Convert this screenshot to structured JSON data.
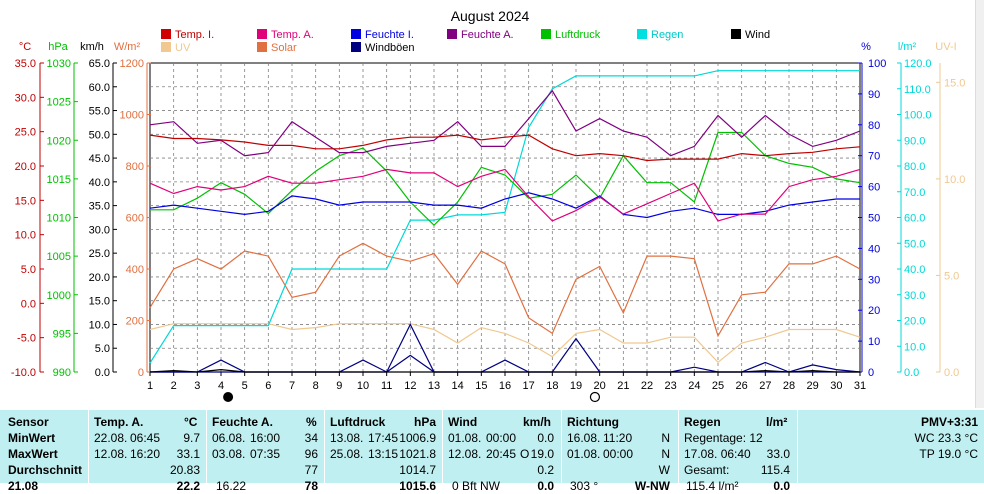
{
  "title": "August 2024",
  "colors": {
    "temp_in": "#c00000",
    "temp_out": "#e0007a",
    "hum_in": "#0000e0",
    "hum_out": "#800080",
    "pressure": "#00c000",
    "rain": "#00d8d8",
    "wind": "#000000",
    "gust": "#000080",
    "uv": "#f0c890",
    "solar": "#e07040",
    "grid": "#808080"
  },
  "legend": [
    {
      "label": "Temp. I.",
      "color": "#d00000",
      "text_color": "#c00000"
    },
    {
      "label": "Temp. A.",
      "color": "#e0007a",
      "text_color": "#e0007a"
    },
    {
      "label": "Feuchte I.",
      "color": "#0000e0",
      "text_color": "#0000e0"
    },
    {
      "label": "Feuchte A.",
      "color": "#800080",
      "text_color": "#800080"
    },
    {
      "label": "Luftdruck",
      "color": "#00c000",
      "text_color": "#00c000"
    },
    {
      "label": "Regen",
      "color": "#00e0e0",
      "text_color": "#00c8c8"
    },
    {
      "label": "Wind",
      "color": "#000000",
      "text_color": "#000000"
    },
    {
      "label": "UV",
      "color": "#f0c890",
      "text_color": "#f0c890"
    },
    {
      "label": "Solar",
      "color": "#e07040",
      "text_color": "#e07040"
    },
    {
      "label": "Windböen",
      "color": "#000080",
      "text_color": "#000000"
    }
  ],
  "axis_units": {
    "temp": "°C",
    "pressure": "hPa",
    "wind": "km/h",
    "solar": "W/m²",
    "hum": "%",
    "rain": "l/m²",
    "uv": "UV-I"
  },
  "chart_data": {
    "type": "line",
    "title": "August 2024",
    "x": [
      1,
      2,
      3,
      4,
      5,
      6,
      7,
      8,
      9,
      10,
      11,
      12,
      13,
      14,
      15,
      16,
      17,
      18,
      19,
      20,
      21,
      22,
      23,
      24,
      25,
      26,
      27,
      28,
      29,
      30,
      31
    ],
    "axes": {
      "temp": {
        "ticks": [
          "35.0",
          "30.0",
          "25.0",
          "20.0",
          "15.0",
          "10.0",
          "5.0",
          "0.0",
          "-5.0",
          "-10.0"
        ],
        "range": [
          -10,
          35
        ]
      },
      "pressure": {
        "ticks": [
          "1030",
          "1025",
          "1020",
          "1015",
          "1010",
          "1005",
          "1000",
          "995",
          "990"
        ],
        "range": [
          990,
          1030
        ]
      },
      "wind": {
        "ticks": [
          "65.0",
          "60.0",
          "55.0",
          "50.0",
          "45.0",
          "40.0",
          "35.0",
          "30.0",
          "25.0",
          "20.0",
          "15.0",
          "10.0",
          "5.0",
          "0.0"
        ],
        "range": [
          0,
          65
        ]
      },
      "solar": {
        "ticks": [
          "1200",
          "1000",
          "800",
          "600",
          "400",
          "200",
          "0"
        ],
        "range": [
          0,
          1200
        ]
      },
      "hum": {
        "ticks": [
          "100",
          "90",
          "80",
          "70",
          "60",
          "50",
          "40",
          "30",
          "20",
          "10",
          "0"
        ],
        "range": [
          0,
          100
        ]
      },
      "rain": {
        "ticks": [
          "120.0",
          "110.0",
          "100.0",
          "90.0",
          "80.0",
          "70.0",
          "60.0",
          "50.0",
          "40.0",
          "30.0",
          "20.0",
          "10.0",
          "0.0"
        ],
        "range": [
          0,
          120
        ]
      },
      "uv": {
        "ticks": [
          "15.0",
          "10.0",
          "5.0",
          "0.0"
        ],
        "range": [
          0,
          16
        ]
      }
    },
    "series": [
      {
        "name": "Temp. I.",
        "axis": "temp",
        "values": [
          24.5,
          24.0,
          24.0,
          23.8,
          23.5,
          23.0,
          23.0,
          22.5,
          22.5,
          23.0,
          23.8,
          24.2,
          24.2,
          24.5,
          23.8,
          24.2,
          24.5,
          22.5,
          21.5,
          21.8,
          21.5,
          20.8,
          21.0,
          21.0,
          21.0,
          21.8,
          21.5,
          21.8,
          22.0,
          22.5,
          22.8
        ]
      },
      {
        "name": "Temp. A.",
        "axis": "temp",
        "values": [
          17.5,
          16.0,
          17.0,
          16.5,
          17.0,
          18.5,
          17.5,
          17.5,
          18.0,
          18.5,
          19.5,
          19.0,
          19.0,
          17.0,
          18.5,
          19.5,
          15.5,
          12.0,
          13.5,
          15.5,
          13.0,
          14.5,
          16.0,
          17.5,
          12.0,
          13.0,
          13.0,
          17.0,
          18.0,
          18.5,
          19.5
        ]
      },
      {
        "name": "Feuchte I.",
        "axis": "hum",
        "values": [
          53,
          54,
          53,
          52,
          51,
          52,
          57,
          56,
          54,
          55,
          55,
          55,
          54,
          54,
          53,
          56,
          58,
          56,
          53,
          57,
          51,
          50,
          52,
          53,
          51,
          51,
          52,
          54,
          55,
          56,
          56
        ]
      },
      {
        "name": "Feuchte A.",
        "axis": "hum",
        "values": [
          80,
          81,
          74,
          75,
          70,
          71,
          81,
          76,
          71,
          71,
          73,
          74,
          75,
          81,
          73,
          73,
          82,
          91,
          78,
          82,
          78,
          76,
          70,
          73,
          83,
          76,
          83,
          77,
          73,
          75,
          78
        ]
      },
      {
        "name": "Luftdruck",
        "axis": "pressure",
        "values": [
          1011.0,
          1011.0,
          1012.5,
          1014.5,
          1013.0,
          1010.5,
          1013.5,
          1016.0,
          1018.0,
          1019.0,
          1016.0,
          1012.0,
          1009.0,
          1012.0,
          1016.5,
          1015.5,
          1012.5,
          1013.0,
          1015.5,
          1012.5,
          1018.0,
          1014.5,
          1014.5,
          1012.0,
          1021.0,
          1021.0,
          1018.0,
          1017.0,
          1016.5,
          1015.0,
          1014.5
        ]
      },
      {
        "name": "Regen",
        "axis": "rain",
        "values": [
          3.5,
          18,
          18,
          18,
          18,
          18,
          40,
          40,
          40,
          40,
          40,
          59,
          59,
          61,
          61,
          62,
          95,
          110,
          115,
          115,
          115,
          115,
          115,
          115,
          117,
          117,
          117,
          117,
          117,
          117,
          117
        ]
      },
      {
        "name": "Wind",
        "axis": "wind",
        "values": [
          0,
          0.3,
          0,
          0.5,
          0,
          0,
          0,
          0,
          0,
          0,
          0,
          0,
          0,
          0,
          0,
          0,
          0,
          0,
          0,
          0,
          0,
          0,
          0,
          0,
          0,
          0,
          0.3,
          0,
          0.3,
          0,
          0
        ]
      },
      {
        "name": "Windböen",
        "axis": "wind",
        "values": [
          0,
          0,
          0,
          2.5,
          0,
          0,
          0,
          0,
          0,
          2.5,
          0,
          10,
          0,
          0,
          0,
          2.5,
          0,
          0,
          7,
          0,
          0,
          0,
          0,
          1,
          0,
          0,
          2,
          0,
          1.5,
          0.5,
          0
        ]
      },
      {
        "name": "Windböen (2)",
        "axis": "wind",
        "values": [
          0,
          0,
          0,
          0,
          0,
          0,
          0,
          0,
          0,
          0,
          0,
          3.5,
          0,
          0,
          0,
          0,
          0,
          0,
          0,
          0,
          0,
          0,
          0,
          0,
          0,
          0,
          0,
          0,
          0,
          0,
          0
        ]
      },
      {
        "name": "UV",
        "axis": "uv",
        "values": [
          2.2,
          2.5,
          2.5,
          2.5,
          2.5,
          2.5,
          2.2,
          2.3,
          2.5,
          2.5,
          2.5,
          2.5,
          2.2,
          1.5,
          2.3,
          2.0,
          1.5,
          0.8,
          2.0,
          2.2,
          1.5,
          1.5,
          1.8,
          1.8,
          0.5,
          1.5,
          1.8,
          2.2,
          2.2,
          2.2,
          1.8
        ]
      },
      {
        "name": "Solar",
        "axis": "solar",
        "values": [
          250,
          400,
          440,
          400,
          470,
          450,
          290,
          310,
          450,
          500,
          450,
          430,
          460,
          340,
          470,
          420,
          210,
          150,
          360,
          410,
          230,
          450,
          450,
          440,
          140,
          300,
          310,
          420,
          420,
          450,
          400
        ]
      }
    ],
    "moon": [
      {
        "day": 4.3,
        "phase": "new"
      },
      {
        "day": 19.8,
        "phase": "full"
      }
    ]
  },
  "stats": {
    "sensor": {
      "header": "Sensor",
      "rows": [
        "MinWert",
        "MaxWert",
        "Durchschnitt",
        "21.08"
      ]
    },
    "temp": {
      "header": "Temp. A.",
      "unit": "°C",
      "rows": [
        {
          "date": "22.08.",
          "time": "06:45",
          "value": "9.7"
        },
        {
          "date": "12.08.",
          "time": "16:20",
          "value": "33.1"
        },
        {
          "date": "",
          "time": "",
          "value": "20.83"
        },
        {
          "date": "",
          "time": "",
          "value": "22.2"
        }
      ]
    },
    "hum": {
      "header": "Feuchte A.",
      "unit": "%",
      "rows": [
        {
          "date": "06.08.",
          "time": "16:00",
          "value": "34"
        },
        {
          "date": "03.08.",
          "time": "07:35",
          "value": "96"
        },
        {
          "date": "",
          "time": "",
          "value": "77"
        },
        {
          "date": "16.22",
          "time": "",
          "value": "78"
        }
      ]
    },
    "pressure": {
      "header": "Luftdruck",
      "unit": "hPa",
      "rows": [
        {
          "date": "13.08.",
          "time": "17:45",
          "value": "1006.9"
        },
        {
          "date": "25.08.",
          "time": "13:15",
          "value": "1021.8"
        },
        {
          "date": "",
          "time": "",
          "value": "1014.7"
        },
        {
          "date": "",
          "time": "",
          "value": "1015.6"
        }
      ]
    },
    "wind": {
      "header": "Wind",
      "unit": "km/h",
      "rows": [
        {
          "date": "01.08.",
          "time": "00:00",
          "dir": "",
          "value": "0.0"
        },
        {
          "date": "12.08.",
          "time": "20:45",
          "dir": "O",
          "value": "19.0"
        },
        {
          "date": "",
          "time": "",
          "dir": "",
          "value": "0.2"
        },
        {
          "date": "0 Bft NW",
          "time": "",
          "dir": "",
          "value": "0.0"
        }
      ]
    },
    "direction": {
      "header": "Richtung",
      "rows": [
        {
          "date": "16.08.",
          "time": "11:20",
          "value": "N"
        },
        {
          "date": "01.08.",
          "time": "00:00",
          "value": "N"
        },
        {
          "date": "",
          "time": "",
          "value": "W"
        },
        {
          "date": "303 °",
          "time": "",
          "value": "W-NW"
        }
      ]
    },
    "rain": {
      "header": "Regen",
      "unit": "l/m²",
      "rows": [
        {
          "label": "Regentage: 12",
          "value": ""
        },
        {
          "label": "17.08.  06:40",
          "value": "33.0"
        },
        {
          "label": "Gesamt:",
          "value": "115.4"
        },
        {
          "label": "115.4 l/m²",
          "value": "0.0"
        }
      ]
    },
    "comfort": {
      "rows": [
        "PMV+3:31",
        "WC 23.3 °C",
        "TP 19.0 °C"
      ]
    }
  }
}
